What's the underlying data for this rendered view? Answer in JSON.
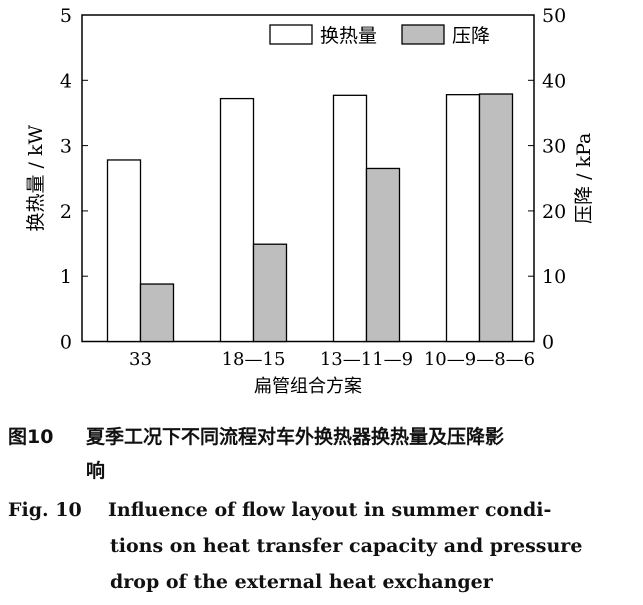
{
  "chart_data": {
    "type": "bar",
    "categories": [
      "33",
      "18—15",
      "13—11—9",
      "10—9—8—6"
    ],
    "xlabel": "扁管组合方案",
    "ylabel_left": "换热量 / kW",
    "ylabel_right": "压降 / kPa",
    "ylim_left": [
      0,
      5
    ],
    "ylim_right": [
      0,
      50
    ],
    "yticks_left": [
      "0",
      "1",
      "2",
      "3",
      "4",
      "5"
    ],
    "yticks_right": [
      "0",
      "10",
      "20",
      "30",
      "40",
      "50"
    ],
    "legend_position": "top-right",
    "series": [
      {
        "name": "换热量",
        "axis": "left",
        "color": "#ffffff",
        "values": [
          2.78,
          3.72,
          3.77,
          3.78
        ]
      },
      {
        "name": "压降",
        "axis": "right",
        "color": "#bebebe",
        "values": [
          8.8,
          14.9,
          26.5,
          37.9
        ]
      }
    ]
  },
  "caption": {
    "cn_label": "图10",
    "cn_text_1": "夏季工况下不同流程对车外换热器换热量及压降影",
    "cn_text_2": "响",
    "en_label": "Fig. 10",
    "en_text_1": "Influence of flow layout in summer condi-",
    "en_text_2": "tions on heat transfer capacity and pressure",
    "en_text_3": "drop of the external heat exchanger"
  }
}
